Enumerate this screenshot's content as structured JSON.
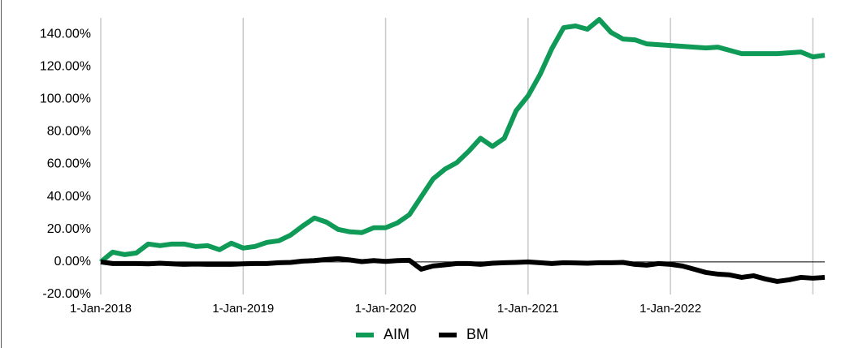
{
  "chart_data": {
    "type": "line",
    "x": [
      "1-Jan-2018",
      "1-Feb-2018",
      "1-Mar-2018",
      "1-Apr-2018",
      "1-May-2018",
      "1-Jun-2018",
      "1-Jul-2018",
      "1-Aug-2018",
      "1-Sep-2018",
      "1-Oct-2018",
      "1-Nov-2018",
      "1-Dec-2018",
      "1-Jan-2019",
      "1-Feb-2019",
      "1-Mar-2019",
      "1-Apr-2019",
      "1-May-2019",
      "1-Jun-2019",
      "1-Jul-2019",
      "1-Aug-2019",
      "1-Sep-2019",
      "1-Oct-2019",
      "1-Nov-2019",
      "1-Dec-2019",
      "1-Jan-2020",
      "1-Feb-2020",
      "1-Mar-2020",
      "1-Apr-2020",
      "1-May-2020",
      "1-Jun-2020",
      "1-Jul-2020",
      "1-Aug-2020",
      "1-Sep-2020",
      "1-Oct-2020",
      "1-Nov-2020",
      "1-Dec-2020",
      "1-Jan-2021",
      "1-Feb-2021",
      "1-Mar-2021",
      "1-Apr-2021",
      "1-May-2021",
      "1-Jun-2021",
      "1-Jul-2021",
      "1-Aug-2021",
      "1-Sep-2021",
      "1-Oct-2021",
      "1-Nov-2021",
      "1-Dec-2021",
      "1-Jan-2022",
      "1-Feb-2022",
      "1-Mar-2022",
      "1-Apr-2022",
      "1-May-2022",
      "1-Jun-2022",
      "1-Jul-2022",
      "1-Aug-2022",
      "1-Sep-2022",
      "1-Oct-2022",
      "1-Nov-2022",
      "1-Dec-2022",
      "1-Jan-2023",
      "1-Feb-2023"
    ],
    "series": [
      {
        "name": "AIM",
        "color": "#0f9a58",
        "values": [
          0,
          6,
          4.5,
          5.5,
          11,
          10,
          11,
          11,
          9.5,
          10,
          7.5,
          11.5,
          8.5,
          9.5,
          12,
          13,
          16.5,
          22,
          27,
          24.5,
          20,
          18.5,
          18,
          21,
          21,
          24,
          29,
          40,
          51,
          57,
          61,
          68,
          76,
          71,
          76,
          93,
          102,
          115,
          131,
          144,
          145,
          143,
          149,
          141,
          137,
          136.5,
          134,
          133.5,
          133,
          132.5,
          132,
          131.5,
          132,
          130,
          128,
          128,
          128,
          128,
          128.5,
          129,
          126,
          127
        ]
      },
      {
        "name": "BM",
        "color": "#000000",
        "values": [
          0,
          -1,
          -1,
          -1,
          -1.2,
          -0.8,
          -1.2,
          -1.5,
          -1.3,
          -1.5,
          -1.5,
          -1.5,
          -1.2,
          -1,
          -1,
          -0.5,
          -0.3,
          0.5,
          0.8,
          1.5,
          2,
          1.2,
          0.2,
          0.8,
          0.3,
          0.8,
          1,
          -4.5,
          -2.5,
          -1.8,
          -1,
          -1,
          -1.5,
          -0.8,
          -0.5,
          -0.3,
          0,
          -0.5,
          -1,
          -0.5,
          -0.6,
          -0.8,
          -0.5,
          -0.5,
          -0.3,
          -1.5,
          -2,
          -1,
          -1.5,
          -2.5,
          -4.5,
          -6.5,
          -7.5,
          -8,
          -9.5,
          -8.5,
          -10.5,
          -12,
          -11,
          -9.5,
          -10,
          -9.5
        ]
      }
    ],
    "xlim": [
      "1-Jan-2018",
      "1-Feb-2023"
    ],
    "xticks": [
      "1-Jan-2018",
      "1-Jan-2019",
      "1-Jan-2020",
      "1-Jan-2021",
      "1-Jan-2022",
      {
        "value": "1-Jan-2023",
        "label": null
      }
    ],
    "ylim": [
      -20,
      150
    ],
    "yticks": [
      {
        "value": -20,
        "label": "-20.00%"
      },
      {
        "value": 0,
        "label": "0.00%"
      },
      {
        "value": 20,
        "label": "20.00%"
      },
      {
        "value": 40,
        "label": "40.00%"
      },
      {
        "value": 60,
        "label": "60.00%"
      },
      {
        "value": 80,
        "label": "80.00%"
      },
      {
        "value": 100,
        "label": "100.00%"
      },
      {
        "value": 120,
        "label": "120.00%"
      },
      {
        "value": 140,
        "label": "140.00%"
      }
    ],
    "grid": "x",
    "legend": "bottom"
  }
}
